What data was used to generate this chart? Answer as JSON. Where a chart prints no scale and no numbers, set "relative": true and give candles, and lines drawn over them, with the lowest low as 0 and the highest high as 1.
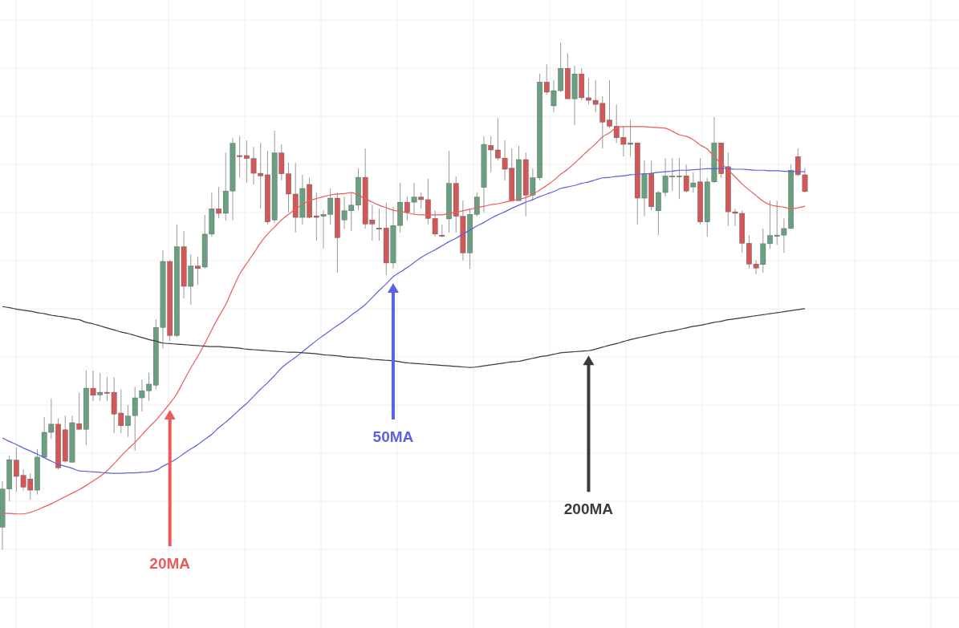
{
  "chart_data": {
    "type": "candlestick",
    "relative": true,
    "grid": true,
    "categories": [
      null,
      null,
      null,
      null,
      null,
      null,
      null,
      null,
      null,
      null,
      null,
      null,
      null,
      null,
      null,
      null,
      null,
      null,
      null,
      null,
      null,
      null,
      null,
      null,
      null,
      null,
      null,
      null,
      null,
      null,
      null,
      null,
      null,
      null,
      null,
      null,
      null,
      null,
      null,
      null,
      null,
      null,
      null,
      null,
      null,
      null,
      null,
      null,
      null,
      null,
      null,
      null,
      null,
      null,
      null,
      null,
      null,
      null,
      null,
      null,
      null,
      null,
      null,
      null,
      null,
      null,
      null,
      null,
      null,
      null,
      null,
      null,
      null,
      null,
      null,
      null,
      null,
      null,
      null,
      null,
      null,
      null,
      null,
      null,
      null,
      null,
      null,
      null,
      null,
      null,
      null,
      null,
      null,
      null,
      null,
      null,
      null,
      null,
      null,
      null,
      null,
      null,
      null,
      null,
      null,
      null,
      null,
      null,
      null,
      null,
      null,
      null,
      null,
      null,
      null,
      null
    ],
    "series": [
      {
        "ohlc": [
          [
            0.044,
            0.134,
            0,
            0.119
          ],
          [
            0.119,
            0.185,
            0.095,
            0.177
          ],
          [
            0.176,
            0.201,
            0.114,
            0.144
          ],
          [
            0.146,
            0.158,
            0.116,
            0.123
          ],
          [
            0.139,
            0.15,
            0.098,
            0.117
          ],
          [
            0.117,
            0.198,
            0.108,
            0.182
          ],
          [
            0.182,
            0.261,
            0.182,
            0.231
          ],
          [
            0.231,
            0.297,
            0.218,
            0.247
          ],
          [
            0.247,
            0.258,
            0.158,
            0.161
          ],
          [
            0.236,
            0.264,
            0.171,
            0.174
          ],
          [
            0.172,
            0.264,
            0.172,
            0.25
          ],
          [
            0.248,
            0.309,
            0.237,
            0.237
          ],
          [
            0.237,
            0.353,
            0.206,
            0.318
          ],
          [
            0.318,
            0.353,
            0.293,
            0.304
          ],
          [
            0.305,
            0.348,
            0.293,
            0.31
          ],
          [
            0.31,
            0.34,
            0.293,
            0.309
          ],
          [
            0.31,
            0.34,
            0.229,
            0.267
          ],
          [
            0.269,
            0.316,
            0.229,
            0.244
          ],
          [
            0.244,
            0.285,
            0.222,
            0.263
          ],
          [
            0.264,
            0.321,
            0.195,
            0.299
          ],
          [
            0.299,
            0.335,
            0.272,
            0.313
          ],
          [
            0.313,
            0.348,
            0.293,
            0.326
          ],
          [
            0.324,
            0.454,
            0.316,
            0.438
          ],
          [
            0.438,
            0.59,
            0.396,
            0.568
          ],
          [
            0.568,
            0.571,
            0.411,
            0.422
          ],
          [
            0.422,
            0.641,
            0.419,
            0.597
          ],
          [
            0.597,
            0.628,
            0.495,
            0.519
          ],
          [
            0.519,
            0.582,
            0.483,
            0.559
          ],
          [
            0.559,
            0.578,
            0.522,
            0.554
          ],
          [
            0.557,
            0.66,
            0.554,
            0.622
          ],
          [
            0.622,
            0.704,
            0.617,
            0.672
          ],
          [
            0.672,
            0.715,
            0.653,
            0.663
          ],
          [
            0.663,
            0.783,
            0.649,
            0.707
          ],
          [
            0.707,
            0.812,
            0.649,
            0.801
          ],
          [
            0.777,
            0.815,
            0.733,
            0.775
          ],
          [
            0.777,
            0.807,
            0.723,
            0.771
          ],
          [
            0.771,
            0.794,
            0.72,
            0.742
          ],
          [
            0.742,
            0.802,
            0.672,
            0.737
          ],
          [
            0.739,
            0.786,
            0.641,
            0.646
          ],
          [
            0.65,
            0.826,
            0.644,
            0.782
          ],
          [
            0.782,
            0.799,
            0.728,
            0.741
          ],
          [
            0.741,
            0.763,
            0.665,
            0.701
          ],
          [
            0.701,
            0.763,
            0.625,
            0.655
          ],
          [
            0.655,
            0.739,
            0.641,
            0.712
          ],
          [
            0.72,
            0.733,
            0.653,
            0.655
          ],
          [
            0.658,
            0.704,
            0.609,
            0.655
          ],
          [
            0.657,
            0.669,
            0.593,
            0.661
          ],
          [
            0.661,
            0.712,
            0.641,
            0.693
          ],
          [
            0.693,
            0.704,
            0.546,
            0.615
          ],
          [
            0.65,
            0.696,
            0.633,
            0.668
          ],
          [
            0.668,
            0.704,
            0.628,
            0.679
          ],
          [
            0.679,
            0.752,
            0.669,
            0.734
          ],
          [
            0.734,
            0.791,
            0.633,
            0.642
          ],
          [
            0.65,
            0.68,
            0.609,
            0.642
          ],
          [
            0.634,
            0.672,
            0.609,
            0.633
          ],
          [
            0.634,
            0.684,
            0.541,
            0.565
          ],
          [
            0.565,
            0.676,
            0.554,
            0.639
          ],
          [
            0.639,
            0.723,
            0.625,
            0.685
          ],
          [
            0.685,
            0.696,
            0.649,
            0.665
          ],
          [
            0.685,
            0.723,
            0.66,
            0.695
          ],
          [
            0.695,
            0.704,
            0.672,
            0.69
          ],
          [
            0.69,
            0.731,
            0.641,
            0.653
          ],
          [
            0.653,
            0.669,
            0.617,
            0.622
          ],
          [
            0.62,
            0.641,
            0.616,
            0.619
          ],
          [
            0.652,
            0.786,
            0.625,
            0.722
          ],
          [
            0.722,
            0.736,
            0.625,
            0.657
          ],
          [
            0.657,
            0.688,
            0.57,
            0.585
          ],
          [
            0.585,
            0.672,
            0.554,
            0.661
          ],
          [
            0.661,
            0.704,
            0.657,
            0.695
          ],
          [
            0.714,
            0.815,
            0.665,
            0.799
          ],
          [
            0.797,
            0.815,
            0.744,
            0.788
          ],
          [
            0.788,
            0.851,
            0.767,
            0.772
          ],
          [
            0.772,
            0.807,
            0.728,
            0.75
          ],
          [
            0.752,
            0.791,
            0.688,
            0.688
          ],
          [
            0.688,
            0.796,
            0.688,
            0.769
          ],
          [
            0.769,
            0.783,
            0.657,
            0.699
          ],
          [
            0.699,
            0.752,
            0.688,
            0.733
          ],
          [
            0.733,
            0.938,
            0.728,
            0.922
          ],
          [
            0.922,
            0.957,
            0.897,
            0.902
          ],
          [
            0.875,
            0.926,
            0.862,
            0.905
          ],
          [
            0.905,
            1,
            0.902,
            0.949
          ],
          [
            0.949,
            0.979,
            0.889,
            0.889
          ],
          [
            0.889,
            0.954,
            0.837,
            0.938
          ],
          [
            0.938,
            0.949,
            0.886,
            0.891
          ],
          [
            0.891,
            0.93,
            0.878,
            0.886
          ],
          [
            0.886,
            0.926,
            0.862,
            0.878
          ],
          [
            0.88,
            0.894,
            0.791,
            0.843
          ],
          [
            0.847,
            0.926,
            0.831,
            0.835
          ],
          [
            0.835,
            0.878,
            0.802,
            0.812
          ],
          [
            0.813,
            0.835,
            0.775,
            0.799
          ],
          [
            0.799,
            0.847,
            0.775,
            0.802
          ],
          [
            0.802,
            0.802,
            0.641,
            0.693
          ],
          [
            0.693,
            0.767,
            0.657,
            0.741
          ],
          [
            0.741,
            0.767,
            0.669,
            0.676
          ],
          [
            0.668,
            0.707,
            0.62,
            0.704
          ],
          [
            0.704,
            0.772,
            0.696,
            0.737
          ],
          [
            0.736,
            0.772,
            0.707,
            0.737
          ],
          [
            0.736,
            0.772,
            0.691,
            0.737
          ],
          [
            0.737,
            0.759,
            0.704,
            0.707
          ],
          [
            0.715,
            0.744,
            0.704,
            0.723
          ],
          [
            0.725,
            0.772,
            0.641,
            0.646
          ],
          [
            0.646,
            0.733,
            0.617,
            0.725
          ],
          [
            0.725,
            0.853,
            0.723,
            0.802
          ],
          [
            0.802,
            0.802,
            0.733,
            0.741
          ],
          [
            0.755,
            0.783,
            0.638,
            0.666
          ],
          [
            0.666,
            0.672,
            0.638,
            0.663
          ],
          [
            0.663,
            0.669,
            0.585,
            0.604
          ],
          [
            0.604,
            0.62,
            0.554,
            0.563
          ],
          [
            0.563,
            0.57,
            0.543,
            0.555
          ],
          [
            0.562,
            0.633,
            0.546,
            0.603
          ],
          [
            0.603,
            0.688,
            0.593,
            0.619
          ],
          [
            0.62,
            0.688,
            0.601,
            0.62
          ],
          [
            0.62,
            0.653,
            0.585,
            0.633
          ],
          [
            0.633,
            0.759,
            0.633,
            0.748
          ],
          [
            0.775,
            0.791,
            0.736,
            0.739
          ],
          [
            0.739,
            0.752,
            0.704,
            0.706
          ]
        ],
        "colors": [
          "#6a9f80",
          "#6a9f80",
          "#d45757",
          "#d45757",
          "#d45757",
          "#6a9f80",
          "#6a9f80",
          "#6a9f80",
          "#d45757",
          "#d45757",
          "#6a9f80",
          "#d45757",
          "#6a9f80",
          "#d45757",
          "#6a9f80",
          "#d45757",
          "#d45757",
          "#d45757",
          "#6a9f80",
          "#6a9f80",
          "#6a9f80",
          "#6a9f80",
          "#6a9f80",
          "#6a9f80",
          "#d45757",
          "#6a9f80",
          "#d45757",
          "#6a9f80",
          "#d45757",
          "#6a9f80",
          "#6a9f80",
          "#d45757",
          "#6a9f80",
          "#6a9f80",
          "#d45757",
          "#d45757",
          "#d45757",
          "#d45757",
          "#d45757",
          "#6a9f80",
          "#d45757",
          "#d45757",
          "#d45757",
          "#6a9f80",
          "#d45757",
          "#d45757",
          "#6a9f80",
          "#6a9f80",
          "#d45757",
          "#6a9f80",
          "#6a9f80",
          "#6a9f80",
          "#d45757",
          "#d45757",
          "#d45757",
          "#d45757",
          "#6a9f80",
          "#6a9f80",
          "#d45757",
          "#6a9f80",
          "#d45757",
          "#d45757",
          "#d45757",
          "#d45757",
          "#6a9f80",
          "#d45757",
          "#d45757",
          "#6a9f80",
          "#6a9f80",
          "#6a9f80",
          "#d45757",
          "#d45757",
          "#d45757",
          "#d45757",
          "#6a9f80",
          "#d45757",
          "#6a9f80",
          "#6a9f80",
          "#d45757",
          "#6a9f80",
          "#6a9f80",
          "#d45757",
          "#6a9f80",
          "#d45757",
          "#d45757",
          "#d45757",
          "#d45757",
          "#d45757",
          "#d45757",
          "#d45757",
          "#6a9f80",
          "#d45757",
          "#6a9f80",
          "#d45757",
          "#6a9f80",
          "#6a9f80",
          "#6a9f80",
          "#6a9f80",
          "#d45757",
          "#6a9f80",
          "#d45757",
          "#6a9f80",
          "#6a9f80",
          "#d45757",
          "#d45757",
          "#d45757",
          "#d45757",
          "#d45757",
          "#d45757",
          "#6a9f80",
          "#6a9f80",
          "#6a9f80",
          "#6a9f80",
          "#6a9f80",
          "#d45757",
          "#d45757"
        ]
      },
      {
        "type": "line",
        "name": "20MA",
        "color": "#ec5b5b",
        "values": [
          0.071,
          0.071,
          0.07,
          0.07,
          0.073,
          0.078,
          0.084,
          0.09,
          0.097,
          0.104,
          0.111,
          0.118,
          0.126,
          0.135,
          0.144,
          0.155,
          0.169,
          0.184,
          0.198,
          0.211,
          0.226,
          0.241,
          0.255,
          0.271,
          0.288,
          0.307,
          0.333,
          0.358,
          0.381,
          0.406,
          0.433,
          0.459,
          0.483,
          0.514,
          0.543,
          0.564,
          0.584,
          0.605,
          0.622,
          0.636,
          0.65,
          0.661,
          0.671,
          0.681,
          0.688,
          0.692,
          0.696,
          0.699,
          0.701,
          0.702,
          0.704,
          0.699,
          0.692,
          0.685,
          0.679,
          0.674,
          0.669,
          0.667,
          0.664,
          0.661,
          0.66,
          0.66,
          0.66,
          0.66,
          0.663,
          0.665,
          0.668,
          0.671,
          0.674,
          0.677,
          0.68,
          0.682,
          0.685,
          0.688,
          0.691,
          0.694,
          0.7,
          0.709,
          0.718,
          0.728,
          0.74,
          0.75,
          0.762,
          0.775,
          0.788,
          0.8,
          0.814,
          0.822,
          0.832,
          0.834,
          0.834,
          0.834,
          0.834,
          0.833,
          0.832,
          0.831,
          0.825,
          0.818,
          0.815,
          0.808,
          0.798,
          0.79,
          0.775,
          0.761,
          0.749,
          0.735,
          0.721,
          0.709,
          0.698,
          0.687,
          0.68,
          0.677,
          0.675,
          0.672,
          0.674,
          0.677
        ]
      },
      {
        "type": "line",
        "name": "50MA",
        "color": "#5962e0",
        "values": [
          0.22,
          0.213,
          0.207,
          0.2,
          0.194,
          0.188,
          0.181,
          0.174,
          0.168,
          0.164,
          0.16,
          0.155,
          0.154,
          0.153,
          0.152,
          0.151,
          0.15,
          0.15,
          0.151,
          0.151,
          0.152,
          0.153,
          0.156,
          0.164,
          0.171,
          0.179,
          0.189,
          0.198,
          0.207,
          0.217,
          0.227,
          0.24,
          0.251,
          0.263,
          0.276,
          0.288,
          0.302,
          0.316,
          0.329,
          0.343,
          0.358,
          0.369,
          0.379,
          0.39,
          0.401,
          0.412,
          0.422,
          0.432,
          0.442,
          0.451,
          0.462,
          0.472,
          0.483,
          0.497,
          0.511,
          0.524,
          0.538,
          0.547,
          0.556,
          0.566,
          0.576,
          0.584,
          0.591,
          0.599,
          0.607,
          0.614,
          0.622,
          0.63,
          0.638,
          0.645,
          0.653,
          0.66,
          0.666,
          0.673,
          0.679,
          0.685,
          0.69,
          0.696,
          0.701,
          0.706,
          0.712,
          0.715,
          0.718,
          0.722,
          0.725,
          0.729,
          0.733,
          0.734,
          0.736,
          0.737,
          0.739,
          0.74,
          0.741,
          0.742,
          0.744,
          0.745,
          0.746,
          0.748,
          0.748,
          0.749,
          0.75,
          0.751,
          0.751,
          0.752,
          0.751,
          0.75,
          0.75,
          0.749,
          0.748,
          0.748,
          0.747,
          0.747,
          0.746,
          0.746,
          0.745,
          0.745
        ]
      },
      {
        "type": "line",
        "name": "200MA",
        "color": "#3a3a3a",
        "values": [
          0.479,
          0.477,
          0.474,
          0.472,
          0.47,
          0.467,
          0.465,
          0.462,
          0.46,
          0.458,
          0.455,
          0.453,
          0.448,
          0.445,
          0.441,
          0.437,
          0.433,
          0.429,
          0.426,
          0.422,
          0.418,
          0.414,
          0.411,
          0.407,
          0.406,
          0.405,
          0.404,
          0.403,
          0.402,
          0.401,
          0.4,
          0.4,
          0.399,
          0.398,
          0.397,
          0.395,
          0.394,
          0.393,
          0.392,
          0.391,
          0.39,
          0.389,
          0.389,
          0.388,
          0.387,
          0.386,
          0.384,
          0.383,
          0.382,
          0.38,
          0.379,
          0.378,
          0.377,
          0.375,
          0.374,
          0.373,
          0.372,
          0.37,
          0.368,
          0.367,
          0.366,
          0.365,
          0.364,
          0.363,
          0.362,
          0.361,
          0.36,
          0.359,
          0.36,
          0.362,
          0.364,
          0.366,
          0.368,
          0.37,
          0.371,
          0.374,
          0.377,
          0.38,
          0.382,
          0.385,
          0.388,
          0.389,
          0.39,
          0.391,
          0.392,
          0.395,
          0.399,
          0.403,
          0.406,
          0.41,
          0.414,
          0.417,
          0.42,
          0.423,
          0.426,
          0.429,
          0.431,
          0.434,
          0.437,
          0.44,
          0.442,
          0.445,
          0.448,
          0.45,
          0.453,
          0.455,
          0.457,
          0.459,
          0.461,
          0.463,
          0.465,
          0.467,
          0.469,
          0.471,
          0.473,
          0.475
        ]
      }
    ]
  }
}
